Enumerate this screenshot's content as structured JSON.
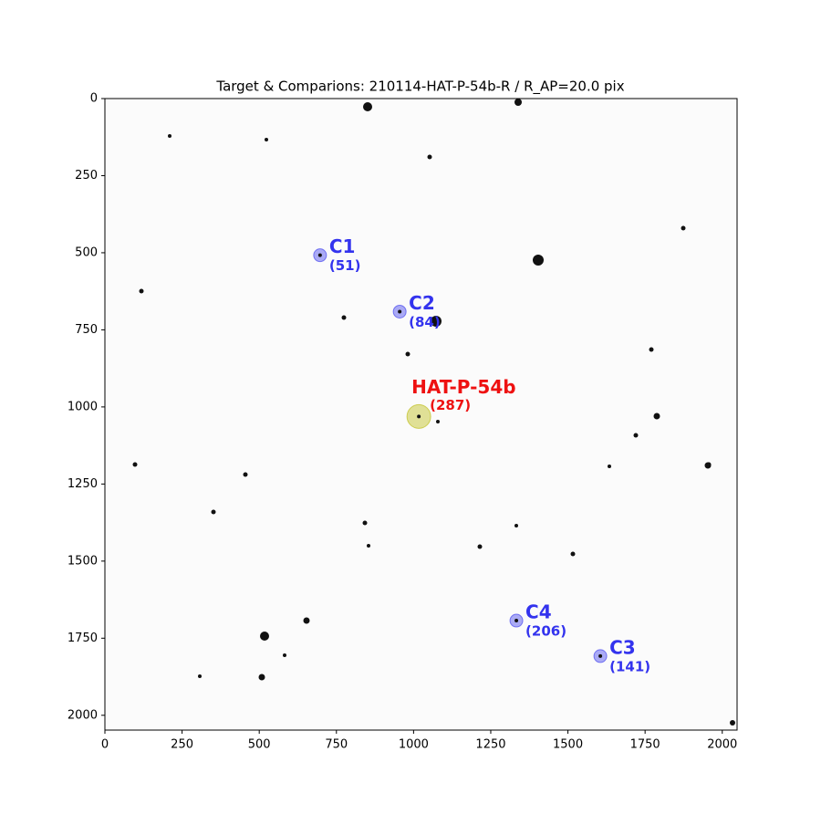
{
  "chart_data": {
    "type": "scatter",
    "title": "Target & Comparions: 210114-HAT-P-54b-R / R_AP=20.0 pix",
    "xlim": [
      0,
      2048
    ],
    "ylim": [
      2048,
      0
    ],
    "xticks": [
      0,
      250,
      500,
      750,
      1000,
      1250,
      1500,
      1750,
      2000
    ],
    "yticks": [
      0,
      250,
      500,
      750,
      1000,
      1250,
      1500,
      1750,
      2000
    ],
    "points": [
      {
        "label": "C1",
        "sublabel": "(51)",
        "x": 697,
        "y": 508,
        "color": "#3333ee"
      },
      {
        "label": "C2",
        "sublabel": "(84)",
        "x": 955,
        "y": 691,
        "color": "#3333ee"
      },
      {
        "label": "C3",
        "sublabel": "(141)",
        "x": 1605,
        "y": 1808,
        "color": "#3333ee"
      },
      {
        "label": "C4",
        "sublabel": "(206)",
        "x": 1333,
        "y": 1693,
        "color": "#3333ee"
      },
      {
        "label": "HAT-P-54b",
        "sublabel": "(287)",
        "x": 1017,
        "y": 1031,
        "color": "#ee1111"
      }
    ]
  }
}
